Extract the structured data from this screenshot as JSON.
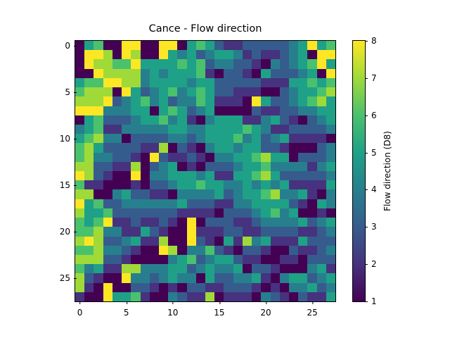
{
  "chart_data": {
    "type": "heatmap",
    "title": "Cance - Flow direction",
    "xlabel": "",
    "ylabel": "",
    "colorbar_label": "Flow direction (D8)",
    "colormap": "viridis",
    "vmin": 1,
    "vmax": 8,
    "x_ticks": [
      0,
      5,
      10,
      15,
      20,
      25
    ],
    "y_ticks": [
      0,
      5,
      10,
      15,
      20,
      25
    ],
    "colorbar_ticks": [
      1,
      2,
      3,
      4,
      5,
      6,
      7,
      8
    ],
    "xlim": [
      -0.5,
      27.5
    ],
    "ylim": [
      27.5,
      -0.5
    ],
    "grid": false,
    "rows": 28,
    "cols": 28,
    "values": [
      [
        1,
        5,
        6,
        1,
        1,
        8,
        8,
        1,
        1,
        8,
        8,
        1,
        5,
        6,
        5,
        3,
        2,
        2,
        3,
        3,
        3,
        3,
        3,
        4,
        5,
        8,
        5,
        6
      ],
      [
        1,
        8,
        8,
        7,
        1,
        8,
        7,
        1,
        1,
        8,
        5,
        4,
        5,
        3,
        4,
        5,
        5,
        4,
        2,
        3,
        2,
        2,
        3,
        4,
        5,
        1,
        8,
        8
      ],
      [
        1,
        8,
        7,
        7,
        6,
        6,
        8,
        5,
        5,
        5,
        5,
        6,
        5,
        6,
        3,
        4,
        4,
        3,
        3,
        2,
        1,
        4,
        3,
        4,
        5,
        6,
        8,
        5
      ],
      [
        1,
        1,
        8,
        7,
        7,
        7,
        7,
        4,
        5,
        4,
        5,
        5,
        5,
        6,
        2,
        1,
        3,
        3,
        2,
        1,
        5,
        3,
        3,
        3,
        4,
        5,
        1,
        8
      ],
      [
        5,
        6,
        6,
        8,
        8,
        7,
        7,
        4,
        5,
        5,
        5,
        5,
        4,
        5,
        5,
        3,
        3,
        3,
        3,
        3,
        2,
        2,
        2,
        5,
        5,
        6,
        5,
        6
      ],
      [
        6,
        7,
        7,
        7,
        1,
        8,
        5,
        3,
        4,
        5,
        6,
        4,
        5,
        6,
        5,
        3,
        3,
        2,
        2,
        2,
        1,
        1,
        3,
        4,
        5,
        5,
        6,
        7
      ],
      [
        7,
        7,
        7,
        8,
        3,
        4,
        5,
        6,
        4,
        5,
        3,
        4,
        4,
        6,
        5,
        2,
        2,
        2,
        1,
        8,
        5,
        3,
        3,
        4,
        5,
        6,
        7,
        5
      ],
      [
        8,
        8,
        8,
        4,
        4,
        4,
        5,
        5,
        1,
        5,
        6,
        5,
        3,
        4,
        5,
        1,
        1,
        1,
        1,
        3,
        2,
        2,
        3,
        3,
        4,
        4,
        5,
        5
      ],
      [
        1,
        5,
        6,
        3,
        3,
        3,
        4,
        5,
        5,
        6,
        4,
        5,
        2,
        1,
        4,
        5,
        5,
        5,
        2,
        2,
        4,
        5,
        3,
        2,
        1,
        3,
        4,
        5
      ],
      [
        4,
        5,
        6,
        2,
        2,
        4,
        4,
        4,
        4,
        4,
        5,
        5,
        4,
        4,
        5,
        5,
        5,
        5,
        6,
        5,
        4,
        2,
        2,
        3,
        3,
        3,
        3,
        4
      ],
      [
        5,
        6,
        7,
        4,
        4,
        1,
        3,
        3,
        3,
        3,
        4,
        4,
        3,
        4,
        5,
        5,
        5,
        6,
        4,
        5,
        3,
        4,
        5,
        2,
        2,
        2,
        2,
        1
      ],
      [
        6,
        7,
        5,
        3,
        3,
        3,
        3,
        2,
        2,
        7,
        1,
        3,
        2,
        1,
        4,
        5,
        5,
        4,
        5,
        5,
        3,
        3,
        2,
        1,
        1,
        1,
        3,
        4
      ],
      [
        6,
        7,
        4,
        4,
        3,
        3,
        2,
        1,
        8,
        3,
        2,
        2,
        3,
        2,
        1,
        4,
        4,
        5,
        5,
        6,
        7,
        5,
        5,
        1,
        3,
        3,
        3,
        4
      ],
      [
        7,
        7,
        3,
        3,
        2,
        2,
        7,
        1,
        3,
        4,
        5,
        1,
        2,
        1,
        3,
        3,
        3,
        4,
        5,
        5,
        6,
        4,
        4,
        4,
        4,
        2,
        4,
        5
      ],
      [
        8,
        7,
        3,
        2,
        1,
        1,
        8,
        1,
        4,
        4,
        5,
        5,
        5,
        4,
        5,
        2,
        2,
        5,
        5,
        6,
        7,
        5,
        3,
        3,
        3,
        3,
        3,
        4
      ],
      [
        6,
        2,
        2,
        1,
        1,
        1,
        2,
        1,
        3,
        3,
        4,
        5,
        5,
        6,
        5,
        5,
        4,
        4,
        5,
        4,
        5,
        4,
        5,
        2,
        2,
        2,
        2,
        5
      ],
      [
        7,
        7,
        1,
        1,
        4,
        5,
        3,
        3,
        2,
        2,
        1,
        4,
        4,
        4,
        4,
        5,
        3,
        4,
        5,
        5,
        6,
        7,
        4,
        4,
        5,
        2,
        1,
        4
      ],
      [
        8,
        5,
        6,
        3,
        3,
        4,
        4,
        4,
        4,
        4,
        4,
        5,
        3,
        3,
        3,
        2,
        2,
        4,
        4,
        5,
        5,
        5,
        5,
        3,
        2,
        1,
        5,
        4
      ],
      [
        7,
        5,
        5,
        6,
        3,
        3,
        3,
        3,
        3,
        3,
        3,
        2,
        2,
        2,
        2,
        1,
        3,
        3,
        3,
        4,
        5,
        6,
        4,
        5,
        1,
        1,
        2,
        1
      ],
      [
        6,
        5,
        6,
        8,
        2,
        2,
        3,
        2,
        2,
        3,
        2,
        1,
        8,
        1,
        3,
        3,
        3,
        2,
        2,
        3,
        4,
        4,
        4,
        4,
        5,
        3,
        4,
        5
      ],
      [
        6,
        6,
        7,
        4,
        4,
        2,
        2,
        5,
        3,
        2,
        1,
        1,
        8,
        2,
        2,
        2,
        3,
        3,
        2,
        2,
        3,
        3,
        3,
        3,
        2,
        2,
        3,
        4
      ],
      [
        7,
        8,
        7,
        3,
        3,
        4,
        5,
        2,
        2,
        7,
        1,
        1,
        8,
        3,
        2,
        1,
        5,
        2,
        7,
        4,
        5,
        2,
        2,
        2,
        5,
        3,
        3,
        3
      ],
      [
        6,
        6,
        7,
        4,
        4,
        3,
        2,
        1,
        1,
        8,
        7,
        1,
        4,
        4,
        6,
        3,
        2,
        1,
        3,
        3,
        2,
        1,
        1,
        3,
        2,
        2,
        3,
        4
      ],
      [
        7,
        7,
        7,
        3,
        3,
        2,
        1,
        1,
        1,
        1,
        4,
        5,
        6,
        3,
        4,
        5,
        5,
        3,
        2,
        2,
        1,
        1,
        2,
        2,
        1,
        3,
        3,
        3
      ],
      [
        6,
        4,
        5,
        2,
        2,
        7,
        7,
        4,
        4,
        4,
        5,
        5,
        3,
        4,
        5,
        4,
        4,
        5,
        1,
        3,
        3,
        2,
        1,
        1,
        1,
        4,
        5,
        2
      ],
      [
        7,
        3,
        2,
        1,
        1,
        8,
        4,
        4,
        3,
        4,
        5,
        4,
        4,
        1,
        5,
        3,
        3,
        4,
        4,
        5,
        2,
        1,
        4,
        5,
        5,
        3,
        4,
        5
      ],
      [
        7,
        2,
        1,
        8,
        1,
        1,
        3,
        3,
        2,
        1,
        2,
        1,
        3,
        3,
        2,
        2,
        3,
        3,
        3,
        2,
        1,
        2,
        1,
        4,
        4,
        5,
        3,
        4
      ],
      [
        2,
        1,
        1,
        8,
        5,
        5,
        6,
        2,
        1,
        1,
        4,
        3,
        2,
        2,
        7,
        1,
        2,
        2,
        2,
        1,
        4,
        3,
        2,
        1,
        3,
        2,
        2,
        5
      ]
    ],
    "palette": {
      "1": "#440154",
      "2": "#46327e",
      "3": "#365c8d",
      "4": "#277f8e",
      "5": "#1fa187",
      "6": "#4ac16d",
      "7": "#a0da39",
      "8": "#fde725"
    }
  },
  "labels": {
    "title": "Cance - Flow direction",
    "colorbar": "Flow direction (D8)",
    "xticks": [
      "0",
      "5",
      "10",
      "15",
      "20",
      "25"
    ],
    "yticks": [
      "0",
      "5",
      "10",
      "15",
      "20",
      "25"
    ],
    "cticks": [
      "1",
      "2",
      "3",
      "4",
      "5",
      "6",
      "7",
      "8"
    ]
  }
}
